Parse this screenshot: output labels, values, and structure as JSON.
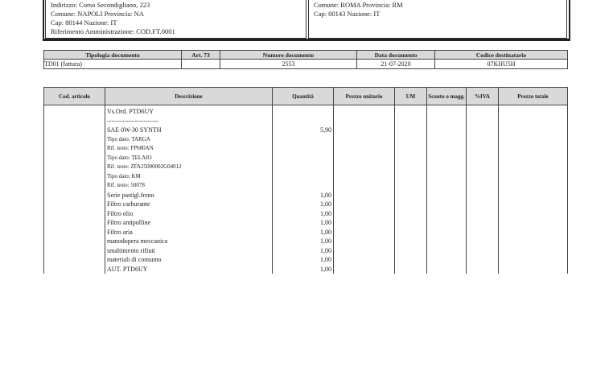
{
  "seller": {
    "lines": [
      "Indirizzo: Corso Secondigliano, 223",
      "Comune: NAPOLI Provincia: NA",
      "Cap: 80144 Nazione: IT",
      "Riferimento Amministrazione: COD.FT.0001"
    ]
  },
  "buyer": {
    "lines": [
      "Comune: ROMA Provincia: RM",
      "Cap: 00143 Nazione: IT"
    ]
  },
  "document_table": {
    "headers": [
      "Tipologia documento",
      "Art. 73",
      "Numero documento",
      "Data documento",
      "Codice destinatario"
    ],
    "row": [
      "TD01 (fattura)",
      "",
      "2553",
      "21-07-2020",
      "07KHU5H"
    ]
  },
  "items_table": {
    "headers": [
      "Cod. articolo",
      "Descrizione",
      "Quantità",
      "Prezzo unitario",
      "UM",
      "Sconto o magg.",
      "%IVA",
      "Prezzo totale"
    ],
    "rows": [
      {
        "desc": "Vs.Ord. PTD6UY",
        "qty": ""
      },
      {
        "desc": "------------------------",
        "qty": ""
      },
      {
        "desc": "SAE 0W-30 SYNTH",
        "qty": "5,90"
      },
      {
        "desc": "Tipo dato: TARGA",
        "qty": "",
        "small": true
      },
      {
        "desc": "Rif. testo: FP680AN",
        "qty": "",
        "small": true
      },
      {
        "desc": "Tipo dato: TELAIO",
        "qty": "",
        "small": true
      },
      {
        "desc": "Rif. testo: ZFA25000002G04012",
        "qty": "",
        "small": true
      },
      {
        "desc": "Tipo dato: KM",
        "qty": "",
        "small": true
      },
      {
        "desc": "Rif. testo: 50078",
        "qty": "",
        "small": true
      },
      {
        "desc": "Serie pastigl.freno",
        "qty": "1,00"
      },
      {
        "desc": "Filtro carburante",
        "qty": "1,00"
      },
      {
        "desc": "Filtro olio",
        "qty": "1,00"
      },
      {
        "desc": "Filtro antipolline",
        "qty": "1,00"
      },
      {
        "desc": "Filtro aria",
        "qty": "1,00"
      },
      {
        "desc": "manodopera meccanica",
        "qty": "1,00"
      },
      {
        "desc": "smaltimento rifiuti",
        "qty": "1,00"
      },
      {
        "desc": "materiali di consumo",
        "qty": "1,00"
      },
      {
        "desc": "AUT. PTD6UY",
        "qty": "1,00"
      }
    ]
  }
}
